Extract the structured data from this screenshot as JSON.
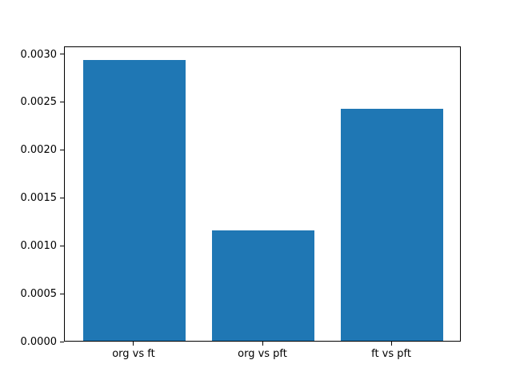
{
  "chart_data": {
    "type": "bar",
    "categories": [
      "org vs ft",
      "org vs pft",
      "ft vs pft"
    ],
    "values": [
      0.00293,
      0.00115,
      0.00242
    ],
    "title": "",
    "xlabel": "",
    "ylabel": "",
    "ylim": [
      0,
      0.00308
    ],
    "xlim": [
      -0.54,
      2.54
    ],
    "yticks": [
      0.0,
      0.0005,
      0.001,
      0.0015,
      0.002,
      0.0025,
      0.003
    ],
    "ytick_decimals": 4,
    "bar_width_units": 0.8,
    "bar_color": "#1f77b4",
    "spine_color": "#000000",
    "background_color": "#ffffff",
    "grid": false,
    "legend": null
  }
}
